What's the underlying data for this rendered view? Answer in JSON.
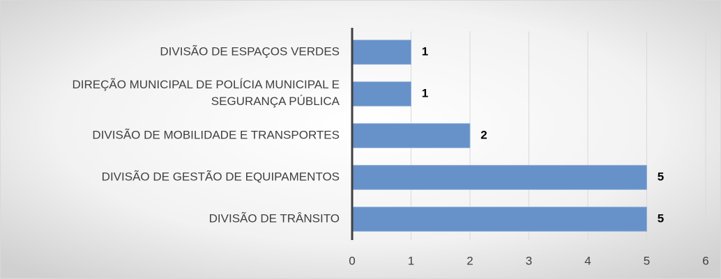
{
  "chart_data": {
    "type": "bar",
    "orientation": "horizontal",
    "categories": [
      "DIVISÃO DE ESPAÇOS VERDES",
      "DIREÇÃO MUNICIPAL DE POLÍCIA MUNICIPAL E SEGURANÇA PÚBLICA",
      "DIVISÃO DE MOBILIDADE E TRANSPORTES",
      "DIVISÃO DE GESTÃO DE EQUIPAMENTOS",
      "DIVISÃO DE TRÂNSITO"
    ],
    "values": [
      1,
      1,
      2,
      5,
      5
    ],
    "color": "#6792c9",
    "xlim": [
      0,
      6
    ],
    "xticks": [
      0,
      1,
      2,
      3,
      4,
      5,
      6
    ],
    "grid": true
  }
}
